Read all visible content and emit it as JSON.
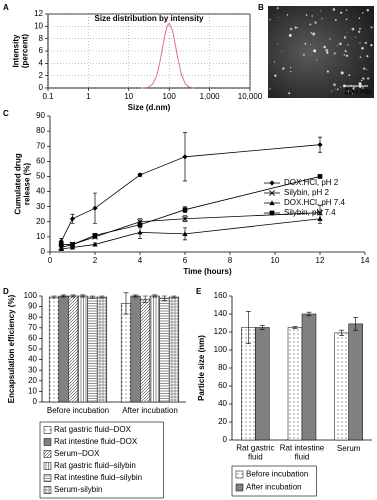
{
  "chart_data": [
    {
      "panel": "A",
      "type": "line",
      "title": "Size distribution by intensity",
      "x_label": "Size (d.nm)",
      "y_label": "Intensity (percent)",
      "xscale": "log",
      "xlim": [
        0.1,
        10000
      ],
      "xticks": [
        0.1,
        1,
        10,
        100,
        {
          "value": 1000,
          "label": "1,000"
        },
        {
          "value": 10000,
          "label": "10,000"
        }
      ],
      "ylim": [
        0,
        12
      ],
      "yticks": [
        0,
        2,
        4,
        6,
        8,
        10,
        12
      ],
      "grid": true,
      "frame": true,
      "x": [
        20,
        30,
        40,
        50,
        60,
        70,
        80,
        90,
        100,
        120,
        140,
        160,
        200,
        250,
        300,
        400
      ],
      "series": [
        {
          "color": "#e07090",
          "values": [
            0,
            0.1,
            0.7,
            2.2,
            4.5,
            6.9,
            8.9,
            10.1,
            10.5,
            9.4,
            7.2,
            5.1,
            2.2,
            0.7,
            0.2,
            0
          ]
        }
      ]
    },
    {
      "panel": "B",
      "type": "image",
      "scale_bar": "200 nm"
    },
    {
      "panel": "C",
      "type": "line",
      "x_label": "Time (hours)",
      "y_label": "Cumulated drug release (%)",
      "xlim": [
        0,
        14
      ],
      "xticks": [
        0,
        2,
        4,
        6,
        8,
        10,
        12,
        14
      ],
      "ylim": [
        0,
        90
      ],
      "yticks": [
        0,
        10,
        20,
        30,
        40,
        50,
        60,
        70,
        80,
        90
      ],
      "legend": "right",
      "x": [
        0.5,
        1,
        2,
        4,
        6,
        12
      ],
      "series": [
        {
          "name": "DOX.HCl, pH 2",
          "color": "#000000",
          "marker": "diamond",
          "values": [
            7,
            22,
            29,
            51,
            63,
            71
          ],
          "errors": [
            2,
            3,
            10,
            1,
            16,
            5
          ]
        },
        {
          "name": "Silybin, pH 2",
          "color": "#000000",
          "marker": "x",
          "values": [
            3,
            5,
            10,
            20,
            22,
            26
          ],
          "errors": [
            1,
            1,
            1,
            2,
            2,
            5
          ]
        },
        {
          "name": "DOX.HCl, pH 7.4",
          "color": "#000000",
          "marker": "triangle",
          "values": [
            2,
            3,
            5,
            13,
            12,
            22
          ],
          "errors": [
            1,
            1,
            1,
            4,
            4,
            3
          ]
        },
        {
          "name": "Silybin, pH 7.4",
          "color": "#000000",
          "marker": "square",
          "values": [
            5,
            5,
            11,
            18,
            28,
            50
          ],
          "errors": [
            1,
            1,
            1,
            2,
            2,
            1
          ]
        }
      ]
    },
    {
      "panel": "D",
      "type": "bar",
      "y_label": "Encapsulation efficiency (%)",
      "categories": [
        "Before incubation",
        "After incubation"
      ],
      "ylim": [
        0,
        100
      ],
      "yticks": [
        0,
        10,
        20,
        30,
        40,
        50,
        60,
        70,
        80,
        90,
        100
      ],
      "legend": "bottom",
      "series": [
        {
          "name": "Rat gastric fluid–DOX",
          "color": "#ffffff",
          "pattern": "dots",
          "values": [
            99,
            93
          ],
          "errors": [
            1,
            10
          ]
        },
        {
          "name": "Rat intestine fluid–DOX",
          "color": "#808080",
          "pattern": "solid",
          "values": [
            100,
            100
          ],
          "errors": [
            1,
            1
          ]
        },
        {
          "name": "Serum–DOX",
          "color": "#ffffff",
          "pattern": "diagonal",
          "values": [
            100,
            97
          ],
          "errors": [
            1,
            3
          ]
        },
        {
          "name": "Rat gastric fluid–silybin",
          "color": "#ffffff",
          "pattern": "vertical",
          "values": [
            100,
            100
          ],
          "errors": [
            1,
            1
          ]
        },
        {
          "name": "Rat intestine fluid–silybin",
          "color": "#ffffff",
          "pattern": "horizontal",
          "values": [
            99,
            98
          ],
          "errors": [
            1,
            2
          ]
        },
        {
          "name": "Serum-silybin",
          "color": "#ffffff",
          "pattern": "grid",
          "values": [
            99,
            99
          ],
          "errors": [
            1,
            1
          ]
        }
      ]
    },
    {
      "panel": "E",
      "type": "bar",
      "y_label": "Particle size (nm)",
      "categories": [
        "Rat gastric fluid",
        "Rat intestine fluid",
        "Serum"
      ],
      "ylim": [
        0,
        160
      ],
      "yticks": [
        0,
        20,
        40,
        60,
        80,
        100,
        120,
        140,
        160
      ],
      "legend": "bottom",
      "series": [
        {
          "name": "Before incubation",
          "color": "#ffffff",
          "pattern": "dots",
          "values": [
            125,
            125,
            119
          ],
          "errors": [
            18,
            1,
            3
          ]
        },
        {
          "name": "After incubation",
          "color": "#808080",
          "pattern": "solid",
          "values": [
            125,
            140,
            129
          ],
          "errors": [
            2,
            2,
            7
          ]
        }
      ]
    }
  ]
}
